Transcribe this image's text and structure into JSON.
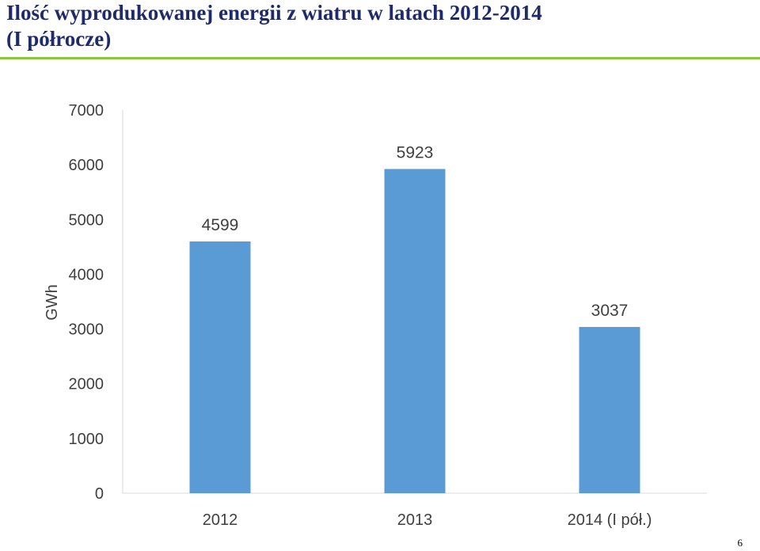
{
  "slide": {
    "title_line1": "Ilość wyprodukowanej energii z wiatru w latach 2012-2014",
    "title_line2": "(I półrocze)",
    "page_number": "6",
    "accent_color": "#8cc63f",
    "title_color": "#1f2a6b"
  },
  "chart_data": {
    "type": "bar",
    "categories": [
      "2012",
      "2013",
      "2014 (I pół.)"
    ],
    "values": [
      4599,
      5923,
      3037
    ],
    "data_labels": [
      "4599",
      "5923",
      "3037"
    ],
    "ylabel": "GWh",
    "xlabel": "",
    "ylim": [
      0,
      7000
    ],
    "yticks": [
      0,
      1000,
      2000,
      3000,
      4000,
      5000,
      6000,
      7000
    ],
    "ytick_labels": [
      "0",
      "1000",
      "2000",
      "3000",
      "4000",
      "5000",
      "6000",
      "7000"
    ],
    "grid": false,
    "bar_color": "#5b9bd5"
  }
}
